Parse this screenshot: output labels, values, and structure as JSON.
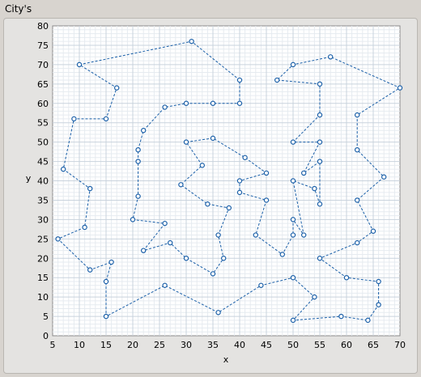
{
  "window": {
    "title": "City's"
  },
  "chart_data": {
    "type": "scatter",
    "title": "",
    "xlabel": "x",
    "ylabel": "y",
    "xlim": [
      5,
      70
    ],
    "ylim": [
      0,
      80
    ],
    "xticks": [
      5,
      10,
      15,
      20,
      25,
      30,
      35,
      40,
      45,
      50,
      55,
      60,
      65,
      70
    ],
    "yticks": [
      0,
      5,
      10,
      15,
      20,
      25,
      30,
      35,
      40,
      45,
      50,
      55,
      60,
      65,
      70,
      75,
      80
    ],
    "grid": true,
    "line_style": "dashed",
    "colors": {
      "line": "#1a5fa8",
      "marker": "#1a5fa8",
      "plot_bg": "#ffffff",
      "grid_major": "#c9d3dd",
      "grid_minor": "#e6ebf0"
    },
    "series": [
      {
        "points": [
          [
            10,
            70
          ],
          [
            31,
            76
          ],
          [
            40,
            66
          ],
          [
            40,
            60
          ],
          [
            35,
            60
          ],
          [
            30,
            60
          ],
          [
            26,
            59
          ],
          [
            22,
            53
          ],
          [
            21,
            48
          ],
          [
            21,
            45
          ],
          [
            21,
            36
          ],
          [
            20,
            30
          ],
          [
            26,
            29
          ],
          [
            22,
            22
          ],
          [
            27,
            24
          ],
          [
            30,
            20
          ],
          [
            35,
            16
          ],
          [
            37,
            20
          ],
          [
            36,
            26
          ],
          [
            38,
            33
          ],
          [
            34,
            34
          ],
          [
            29,
            39
          ],
          [
            33,
            44
          ],
          [
            30,
            50
          ],
          [
            35,
            51
          ],
          [
            41,
            46
          ],
          [
            45,
            42
          ],
          [
            40,
            40
          ],
          [
            40,
            37
          ],
          [
            45,
            35
          ],
          [
            43,
            26
          ],
          [
            48,
            21
          ],
          [
            50,
            26
          ],
          [
            50,
            30
          ],
          [
            52,
            26
          ],
          [
            50,
            40
          ],
          [
            54,
            38
          ],
          [
            55,
            34
          ],
          [
            55,
            45
          ],
          [
            52,
            42
          ],
          [
            55,
            50
          ],
          [
            50,
            50
          ],
          [
            55,
            57
          ],
          [
            55,
            65
          ],
          [
            47,
            66
          ],
          [
            50,
            70
          ],
          [
            57,
            72
          ],
          [
            70,
            64
          ],
          [
            62,
            57
          ],
          [
            62,
            48
          ],
          [
            67,
            41
          ],
          [
            62,
            35
          ],
          [
            65,
            27
          ],
          [
            62,
            24
          ],
          [
            55,
            20
          ],
          [
            60,
            15
          ],
          [
            66,
            14
          ],
          [
            66,
            8
          ],
          [
            64,
            4
          ],
          [
            59,
            5
          ],
          [
            50,
            4
          ],
          [
            54,
            10
          ],
          [
            50,
            15
          ],
          [
            44,
            13
          ],
          [
            36,
            6
          ],
          [
            26,
            13
          ],
          [
            15,
            5
          ],
          [
            15,
            14
          ],
          [
            16,
            19
          ],
          [
            12,
            17
          ],
          [
            6,
            25
          ],
          [
            11,
            28
          ],
          [
            12,
            38
          ],
          [
            7,
            43
          ],
          [
            9,
            56
          ],
          [
            15,
            56
          ],
          [
            17,
            64
          ],
          [
            10,
            70
          ]
        ]
      }
    ]
  }
}
